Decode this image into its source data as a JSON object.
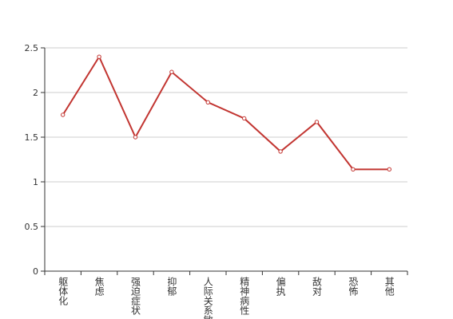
{
  "chart_data": {
    "type": "line",
    "categories": [
      "躯体化",
      "焦虑",
      "强迫症状",
      "抑郁",
      "人际关系敏感",
      "精神病性",
      "偏执",
      "敌对",
      "恐怖",
      "其他"
    ],
    "values": [
      1.75,
      2.4,
      1.5,
      2.23,
      1.89,
      1.71,
      1.34,
      1.67,
      1.14,
      1.14
    ],
    "color": "#c23531",
    "ylim": [
      0,
      2.5
    ],
    "yticks": [
      0,
      0.5,
      1,
      1.5,
      2,
      2.5
    ],
    "grid": true
  }
}
